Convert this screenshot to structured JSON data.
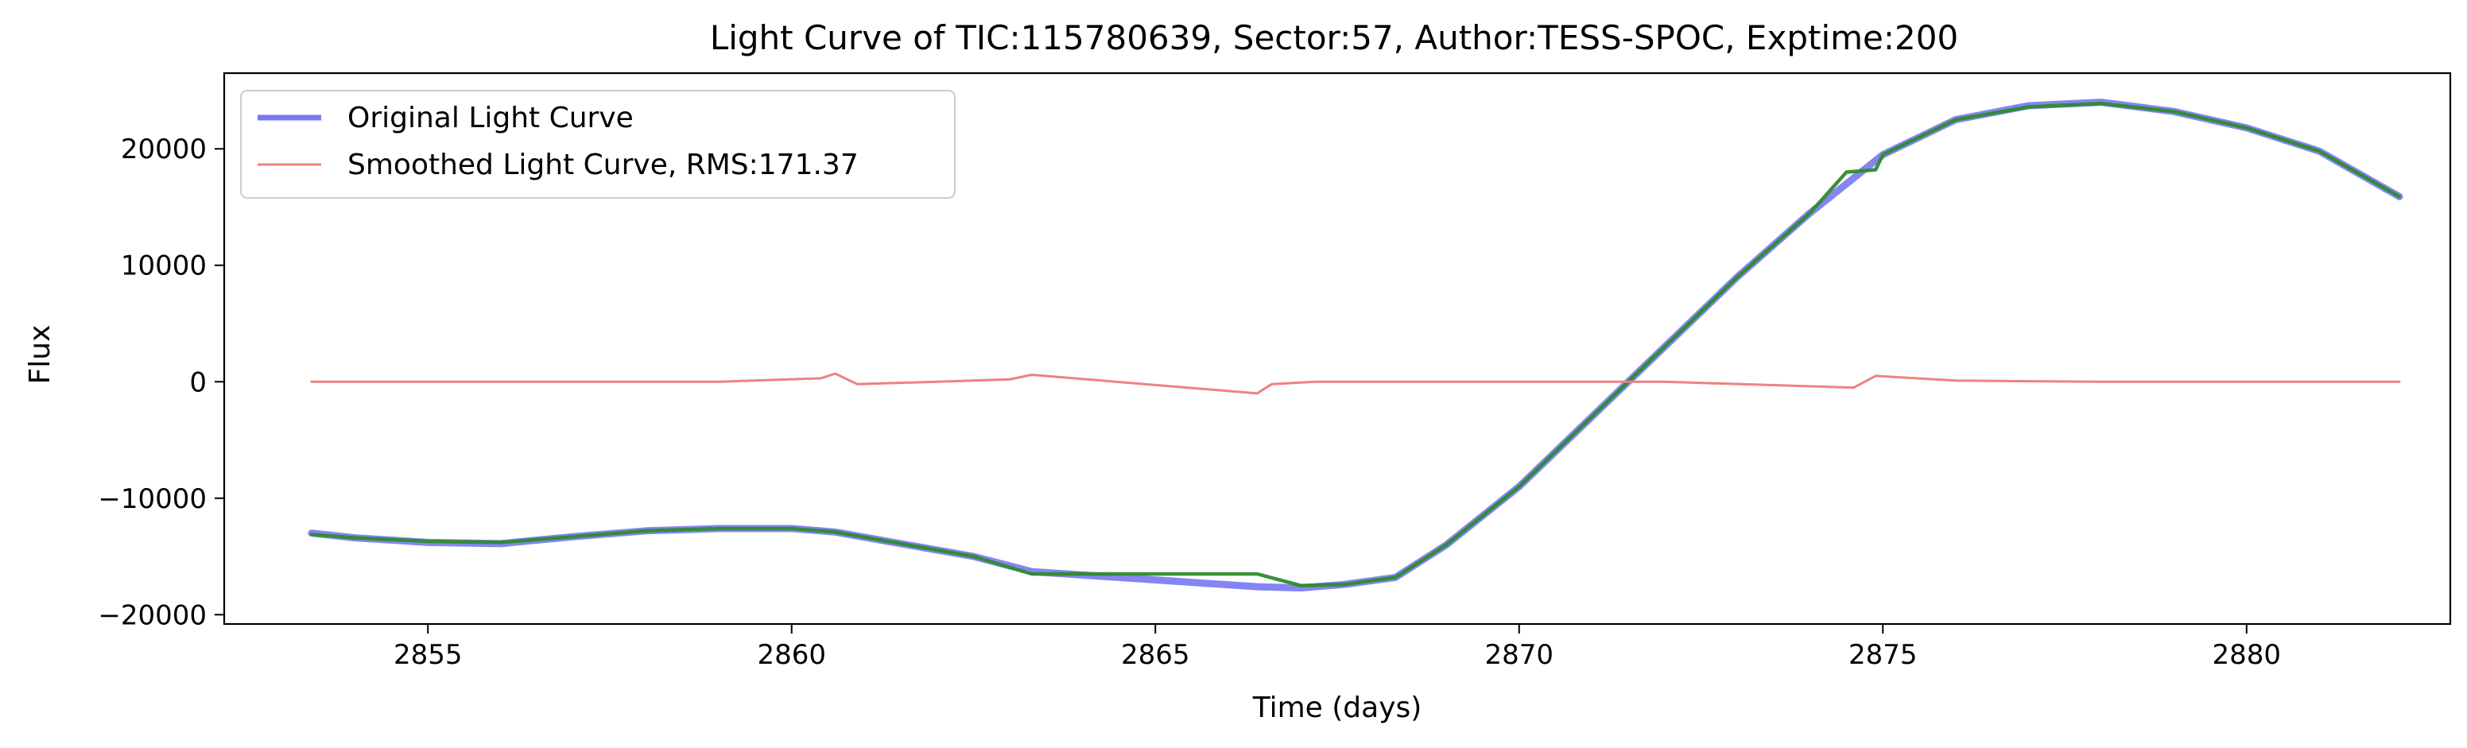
{
  "chart_data": {
    "type": "line",
    "title": "Light Curve of TIC:115780639, Sector:57, Author:TESS-SPOC, Exptime:200",
    "xlabel": "Time (days)",
    "ylabel": "Flux",
    "xlim": [
      2852.2,
      2882.8
    ],
    "ylim": [
      -20800,
      26500
    ],
    "xticks": [
      2855,
      2860,
      2865,
      2870,
      2875,
      2880
    ],
    "yticks": [
      -20000,
      -10000,
      0,
      10000,
      20000
    ],
    "ytick_labels": [
      "−20000",
      "−10000",
      "0",
      "10000",
      "20000"
    ],
    "grid": false,
    "legend_position": "upper-left",
    "legend": [
      {
        "label": "Original Light Curve",
        "color": "#7878f0"
      },
      {
        "label": "Smoothed Light Curve, RMS:171.37",
        "color": "#f08080"
      }
    ],
    "series": [
      {
        "name": "Original Light Curve",
        "color": "#7070f0",
        "x": [
          2853.4,
          2854.0,
          2855.0,
          2856.0,
          2857.0,
          2858.0,
          2859.0,
          2860.0,
          2860.6,
          2861.5,
          2862.5,
          2863.3,
          2866.4,
          2867.0,
          2867.6,
          2868.3,
          2869.0,
          2870.0,
          2871.0,
          2872.0,
          2873.0,
          2874.0,
          2875.0,
          2876.0,
          2877.0,
          2878.0,
          2879.0,
          2880.0,
          2881.0,
          2882.1
        ],
        "y": [
          -13000,
          -13400,
          -13800,
          -13900,
          -13300,
          -12800,
          -12600,
          -12600,
          -12900,
          -13900,
          -15000,
          -16300,
          -17600,
          -17700,
          -17400,
          -16800,
          -14000,
          -9000,
          -3000,
          3000,
          9000,
          14500,
          19500,
          22500,
          23700,
          24000,
          23200,
          21800,
          19800,
          15900
        ]
      },
      {
        "name": "Smoothed",
        "color": "#2e8b2e",
        "x": [
          2853.4,
          2854.0,
          2855.0,
          2856.0,
          2857.0,
          2858.0,
          2859.0,
          2860.0,
          2860.6,
          2861.5,
          2862.5,
          2863.3,
          2866.4,
          2867.0,
          2867.6,
          2868.3,
          2869.0,
          2870.0,
          2871.0,
          2872.0,
          2873.0,
          2874.0,
          2874.5,
          2874.9,
          2875.0,
          2876.0,
          2877.0,
          2878.0,
          2879.0,
          2880.0,
          2881.0,
          2882.1
        ],
        "y": [
          -13100,
          -13400,
          -13700,
          -13800,
          -13300,
          -12800,
          -12600,
          -12600,
          -12900,
          -13900,
          -15000,
          -16500,
          -16500,
          -17500,
          -17400,
          -16800,
          -14000,
          -9000,
          -3000,
          3000,
          9000,
          14500,
          18000,
          18200,
          19500,
          22500,
          23600,
          23900,
          23200,
          21800,
          19800,
          15900
        ]
      },
      {
        "name": "Smoothed Light Curve, RMS:171.37",
        "color": "#f08080",
        "x": [
          2853.4,
          2855.0,
          2857.0,
          2859.0,
          2860.4,
          2860.6,
          2860.9,
          2862.0,
          2863.0,
          2863.3,
          2866.4,
          2866.6,
          2867.2,
          2867.6,
          2869.0,
          2872.0,
          2874.6,
          2874.9,
          2876.0,
          2878.0,
          2880.0,
          2882.1
        ],
        "y": [
          0,
          0,
          0,
          0,
          300,
          700,
          -200,
          0,
          200,
          600,
          -1000,
          -200,
          0,
          0,
          0,
          0,
          -500,
          500,
          100,
          0,
          0,
          0
        ]
      }
    ]
  }
}
